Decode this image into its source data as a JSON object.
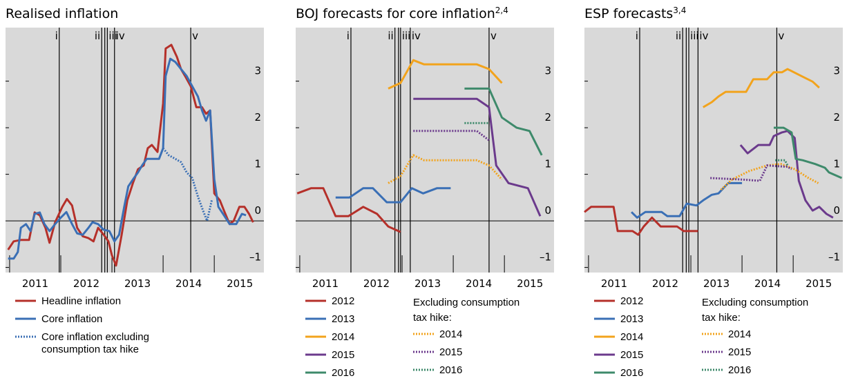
{
  "chart_data": [
    {
      "type": "line",
      "title": "Realised inflation",
      "xlim": [
        2010.92,
        2015.97
      ],
      "ylim": [
        -1.11,
        4.15
      ],
      "yticks": [
        {
          "value": -1,
          "label": "–1"
        },
        0,
        1,
        2,
        3
      ],
      "xticks": [
        {
          "value": 2011.5,
          "label": "2011"
        },
        {
          "value": 2012.5,
          "label": "2012"
        },
        {
          "value": 2013.5,
          "label": "2013"
        },
        {
          "value": 2014.5,
          "label": "2014"
        },
        {
          "value": 2015.5,
          "label": "2015"
        }
      ],
      "events": [
        {
          "x": 2011.97,
          "label": "i"
        },
        {
          "x": 2012.8,
          "label": "ii"
        },
        {
          "x": 2012.86,
          "label": null
        },
        {
          "x": 2012.91,
          "label": "iii"
        },
        {
          "x": 2013.05,
          "label": "iv"
        },
        {
          "x": 2014.54,
          "label": "v"
        }
      ],
      "series": [
        {
          "name": "Headline inflation",
          "color": "#b5302a",
          "style": "solid",
          "x": [
            2010.97,
            2011.08,
            2011.22,
            2011.38,
            2011.49,
            2011.59,
            2011.7,
            2011.78,
            2011.89,
            2012.03,
            2012.12,
            2012.22,
            2012.32,
            2012.43,
            2012.54,
            2012.64,
            2012.73,
            2012.84,
            2012.93,
            2013.0,
            2013.08,
            2013.19,
            2013.3,
            2013.41,
            2013.51,
            2013.62,
            2013.7,
            2013.78,
            2013.89,
            2014.0,
            2014.05,
            2014.16,
            2014.27,
            2014.35,
            2014.43,
            2014.54,
            2014.65,
            2014.76,
            2014.84,
            2014.92,
            2015.0,
            2015.11,
            2015.19,
            2015.3,
            2015.38,
            2015.49,
            2015.59,
            2015.68,
            2015.76
          ],
          "values": [
            -0.62,
            -0.44,
            -0.41,
            -0.41,
            0.18,
            0.12,
            -0.15,
            -0.47,
            -0.03,
            0.3,
            0.47,
            0.33,
            -0.15,
            -0.33,
            -0.37,
            -0.44,
            -0.15,
            -0.3,
            -0.44,
            -0.74,
            -0.96,
            -0.3,
            0.44,
            0.81,
            1.11,
            1.19,
            1.56,
            1.63,
            1.48,
            2.52,
            3.7,
            3.78,
            3.52,
            3.26,
            3.11,
            2.89,
            2.44,
            2.44,
            2.3,
            2.37,
            0.59,
            0.44,
            0.22,
            -0.07,
            0.0,
            0.3,
            0.3,
            0.15,
            -0.03
          ]
        },
        {
          "name": "Core inflation",
          "color": "#3a6fb5",
          "style": "solid",
          "x": [
            2010.97,
            2011.08,
            2011.16,
            2011.22,
            2011.32,
            2011.41,
            2011.49,
            2011.59,
            2011.68,
            2011.78,
            2011.89,
            2012.0,
            2012.11,
            2012.22,
            2012.32,
            2012.43,
            2012.54,
            2012.62,
            2012.73,
            2012.84,
            2012.95,
            2013.05,
            2013.14,
            2013.24,
            2013.32,
            2013.43,
            2013.51,
            2013.59,
            2013.68,
            2013.78,
            2013.92,
            2014.0,
            2014.05,
            2014.14,
            2014.24,
            2014.35,
            2014.46,
            2014.57,
            2014.68,
            2014.76,
            2014.84,
            2014.92,
            2015.0,
            2015.08,
            2015.19,
            2015.3,
            2015.43,
            2015.54,
            2015.62
          ],
          "values": [
            -0.81,
            -0.81,
            -0.67,
            -0.15,
            -0.07,
            -0.22,
            0.15,
            0.18,
            -0.07,
            -0.22,
            -0.07,
            0.07,
            0.19,
            -0.07,
            -0.27,
            -0.3,
            -0.15,
            -0.03,
            -0.07,
            -0.19,
            -0.22,
            -0.44,
            -0.3,
            0.3,
            0.74,
            0.92,
            1.04,
            1.19,
            1.33,
            1.33,
            1.33,
            1.56,
            3.11,
            3.48,
            3.41,
            3.26,
            3.11,
            2.89,
            2.67,
            2.37,
            2.15,
            2.37,
            0.89,
            0.3,
            0.12,
            -0.07,
            -0.07,
            0.15,
            0.12
          ]
        },
        {
          "name": "Core inflation excluding consumption tax hike",
          "color": "#3a6fb5",
          "style": "dotted",
          "x": [
            2014.0,
            2014.11,
            2014.24,
            2014.35,
            2014.46,
            2014.57,
            2014.68,
            2014.78,
            2014.86,
            2014.95
          ],
          "values": [
            1.56,
            1.41,
            1.33,
            1.26,
            1.04,
            0.92,
            0.52,
            0.22,
            0.0,
            0.44
          ]
        }
      ]
    },
    {
      "type": "line",
      "title": "BOJ forecasts for core inflation",
      "title_note": "2,4",
      "xlim": [
        2010.92,
        2015.97
      ],
      "ylim": [
        -1.11,
        4.15
      ],
      "yticks": [
        {
          "value": -1,
          "label": "–1"
        },
        0,
        1,
        2,
        3
      ],
      "xticks": [
        {
          "value": 2011.5,
          "label": "2011"
        },
        {
          "value": 2012.5,
          "label": "2012"
        },
        {
          "value": 2013.5,
          "label": "2013"
        },
        {
          "value": 2014.5,
          "label": "2014"
        },
        {
          "value": 2015.5,
          "label": "2015"
        }
      ],
      "events": [
        {
          "x": 2012.0,
          "label": "i"
        },
        {
          "x": 2012.86,
          "label": "ii"
        },
        {
          "x": 2012.93,
          "label": null
        },
        {
          "x": 2012.97,
          "label": "iii"
        },
        {
          "x": 2013.16,
          "label": "iv"
        },
        {
          "x": 2014.7,
          "label": "v"
        }
      ],
      "legend_title": "Excluding consumption tax hike:",
      "series": [
        {
          "name": "2012",
          "color": "#b5302a",
          "style": "solid",
          "x": [
            2010.95,
            2011.22,
            2011.46,
            2011.7,
            2011.95,
            2012.24,
            2012.51,
            2012.73,
            2012.97
          ],
          "values": [
            0.59,
            0.7,
            0.7,
            0.1,
            0.1,
            0.3,
            0.15,
            -0.12,
            -0.24
          ]
        },
        {
          "name": "2013",
          "color": "#3a6fb5",
          "style": "solid",
          "x": [
            2011.7,
            2011.97,
            2012.24,
            2012.43,
            2012.7,
            2012.97,
            2013.19,
            2013.41,
            2013.68,
            2013.95
          ],
          "values": [
            0.5,
            0.5,
            0.7,
            0.7,
            0.4,
            0.4,
            0.7,
            0.59,
            0.7,
            0.7
          ]
        },
        {
          "name": "2014",
          "color": "#f2a31c",
          "style": "solid",
          "x": [
            2012.73,
            2012.97,
            2013.22,
            2013.43,
            2013.78,
            2014.05,
            2014.46,
            2014.7,
            2014.95
          ],
          "values": [
            2.84,
            2.96,
            3.45,
            3.36,
            3.36,
            3.36,
            3.36,
            3.26,
            2.96
          ]
        },
        {
          "name": "2015",
          "color": "#6b3a8c",
          "style": "solid",
          "x": [
            2013.22,
            2013.78,
            2014.46,
            2014.7,
            2014.84,
            2015.08,
            2015.46,
            2015.7
          ],
          "values": [
            2.62,
            2.62,
            2.62,
            2.44,
            1.19,
            0.81,
            0.7,
            0.1
          ]
        },
        {
          "name": "2016",
          "color": "#3e8a6b",
          "style": "solid",
          "x": [
            2014.22,
            2014.7,
            2014.95,
            2015.24,
            2015.49,
            2015.73
          ],
          "values": [
            2.84,
            2.84,
            2.22,
            2.0,
            1.93,
            1.41
          ]
        },
        {
          "name": "2014",
          "color": "#f2a31c",
          "style": "dotted",
          "x": [
            2012.73,
            2012.97,
            2013.22,
            2013.43,
            2014.46,
            2014.7,
            2014.95
          ],
          "values": [
            0.81,
            0.96,
            1.41,
            1.3,
            1.3,
            1.19,
            0.89
          ]
        },
        {
          "name": "2015",
          "color": "#6b3a8c",
          "style": "dotted",
          "x": [
            2013.22,
            2014.46,
            2014.7
          ],
          "values": [
            1.93,
            1.93,
            1.73
          ]
        },
        {
          "name": "2016",
          "color": "#3e8a6b",
          "style": "dotted",
          "x": [
            2014.22,
            2014.7
          ],
          "values": [
            2.1,
            2.1
          ]
        }
      ]
    },
    {
      "type": "line",
      "title": "ESP forecasts",
      "title_note": "3,4",
      "xlim": [
        2010.92,
        2015.97
      ],
      "ylim": [
        -1.11,
        4.15
      ],
      "yticks": [
        {
          "value": -1,
          "label": "–1"
        },
        0,
        1,
        2,
        3
      ],
      "xticks": [
        {
          "value": 2011.5,
          "label": "2011"
        },
        {
          "value": 2012.5,
          "label": "2012"
        },
        {
          "value": 2013.5,
          "label": "2013"
        },
        {
          "value": 2014.5,
          "label": "2014"
        },
        {
          "value": 2015.5,
          "label": "2015"
        }
      ],
      "events": [
        {
          "x": 2012.0,
          "label": "i"
        },
        {
          "x": 2012.84,
          "label": "ii"
        },
        {
          "x": 2012.91,
          "label": null
        },
        {
          "x": 2012.96,
          "label": "iii"
        },
        {
          "x": 2013.14,
          "label": "iv"
        },
        {
          "x": 2014.68,
          "label": "v"
        }
      ],
      "legend_title": "Excluding consumption tax hike:",
      "series": [
        {
          "name": "2012",
          "color": "#b5302a",
          "style": "solid",
          "x": [
            2010.92,
            2011.05,
            2011.49,
            2011.57,
            2011.86,
            2011.97,
            2012.08,
            2012.24,
            2012.41,
            2012.73,
            2012.86,
            2013.14
          ],
          "values": [
            0.19,
            0.3,
            0.3,
            -0.22,
            -0.22,
            -0.3,
            -0.12,
            0.07,
            -0.12,
            -0.12,
            -0.22,
            -0.22
          ]
        },
        {
          "name": "2013",
          "color": "#3a6fb5",
          "style": "solid",
          "x": [
            2011.84,
            2011.95,
            2012.11,
            2012.43,
            2012.54,
            2012.78,
            2012.92,
            2013.11,
            2013.24,
            2013.41,
            2013.54,
            2013.73,
            2014.0
          ],
          "values": [
            0.19,
            0.07,
            0.19,
            0.19,
            0.1,
            0.1,
            0.37,
            0.33,
            0.44,
            0.56,
            0.59,
            0.81,
            0.81
          ]
        },
        {
          "name": "2014",
          "color": "#f2a31c",
          "style": "solid",
          "x": [
            2013.24,
            2013.41,
            2013.54,
            2013.68,
            2014.08,
            2014.22,
            2014.49,
            2014.62,
            2014.78,
            2014.89,
            2015.16,
            2015.38,
            2015.51
          ],
          "values": [
            2.44,
            2.55,
            2.67,
            2.77,
            2.77,
            3.04,
            3.04,
            3.19,
            3.19,
            3.26,
            3.11,
            2.99,
            2.86
          ]
        },
        {
          "name": "2015",
          "color": "#6b3a8c",
          "style": "solid",
          "x": [
            2013.97,
            2014.11,
            2014.32,
            2014.54,
            2014.62,
            2014.78,
            2014.89,
            2015.03,
            2015.11,
            2015.24,
            2015.38,
            2015.51,
            2015.65,
            2015.78
          ],
          "values": [
            1.63,
            1.45,
            1.63,
            1.63,
            1.82,
            1.9,
            1.93,
            1.78,
            0.86,
            0.44,
            0.22,
            0.3,
            0.15,
            0.07
          ]
        },
        {
          "name": "2016",
          "color": "#3e8a6b",
          "style": "solid",
          "x": [
            2014.62,
            2014.81,
            2014.97,
            2015.05,
            2015.19,
            2015.43,
            2015.62,
            2015.7,
            2015.95
          ],
          "values": [
            2.0,
            2.0,
            1.9,
            1.33,
            1.3,
            1.22,
            1.14,
            1.04,
            0.92
          ]
        },
        {
          "name": "2014",
          "color": "#f2a31c",
          "style": "dotted",
          "x": [
            2013.59,
            2013.81,
            2014.14,
            2014.49,
            2014.76,
            2015.03,
            2015.3,
            2015.49
          ],
          "values": [
            0.67,
            0.89,
            1.07,
            1.19,
            1.22,
            1.11,
            0.92,
            0.81
          ]
        },
        {
          "name": "2015",
          "color": "#6b3a8c",
          "style": "dotted",
          "x": [
            2013.38,
            2013.95,
            2014.35,
            2014.49,
            2014.89,
            2014.97
          ],
          "values": [
            0.92,
            0.89,
            0.86,
            1.19,
            1.16,
            1.11
          ]
        },
        {
          "name": "2016",
          "color": "#3e8a6b",
          "style": "dotted",
          "x": [
            2014.65,
            2014.84,
            2014.89
          ],
          "values": [
            1.3,
            1.3,
            1.19
          ]
        }
      ]
    }
  ]
}
